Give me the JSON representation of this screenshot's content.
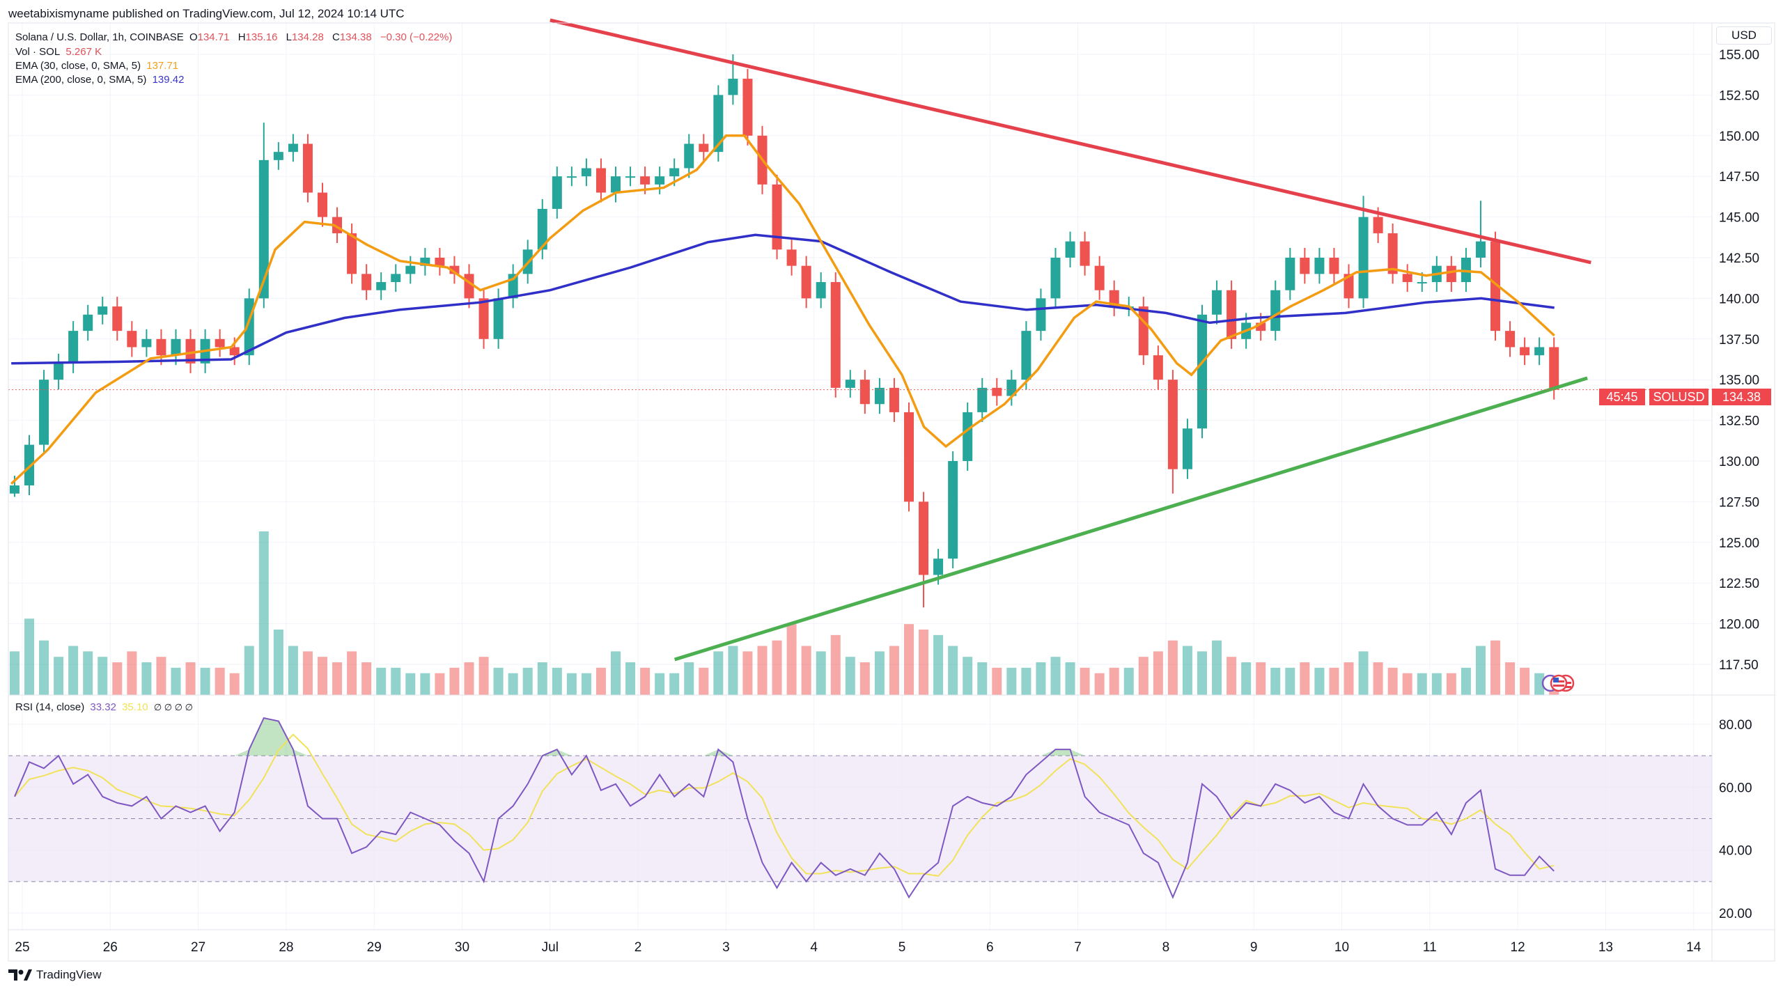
{
  "header": {
    "published": "weetabixismyname published on TradingView.com, Jul 12, 2024 10:14 UTC"
  },
  "legend": {
    "symbol": "Solana / U.S. Dollar, 1h, COINBASE",
    "o_label": "O",
    "o": "134.71",
    "h_label": "H",
    "h": "135.16",
    "l_label": "L",
    "l": "134.28",
    "c_label": "C",
    "c": "134.38",
    "change": "−0.30 (−0.22%)",
    "vol_label": "Vol · SOL",
    "vol": "5.267 K",
    "ema30_label": "EMA (30, close, 0, SMA, 5)",
    "ema30": "137.71",
    "ema200_label": "EMA (200, close, 0, SMA, 5)",
    "ema200": "139.42",
    "rsi_label": "RSI (14, close)",
    "rsi": "33.32",
    "rsi_ma": "35.10",
    "rsi_flags": "∅ ∅ ∅ ∅"
  },
  "price_axis": {
    "currency": "USD",
    "symbol_tag": "SOLUSD",
    "last_price": "134.38",
    "countdown": "45:45"
  },
  "footer": {
    "brand": "TradingView"
  },
  "colors": {
    "up": "#26a69a",
    "down": "#ef5350",
    "ema30": "#f39c12",
    "ema200": "#3030c8",
    "resistance": "#e5414c",
    "support": "#4caf50",
    "rsi": "#7e57c2",
    "rsi_ma": "#f1e25a",
    "rsi_band": "#ede7f6"
  },
  "icons": [
    "tradingview-logo-icon",
    "economic-event-icon"
  ],
  "chart_data": [
    {
      "type": "candlestick",
      "title": "Solana / U.S. Dollar, 1h, COINBASE",
      "ylim": [
        115.5,
        156.5
      ],
      "yticks": [
        "155.00",
        "152.50",
        "150.00",
        "147.50",
        "145.00",
        "142.50",
        "140.00",
        "137.50",
        "135.00",
        "132.50",
        "130.00",
        "127.50",
        "125.00",
        "122.50",
        "120.00",
        "117.50"
      ],
      "xticks": [
        "25",
        "26",
        "27",
        "28",
        "29",
        "30",
        "Jul",
        "2",
        "3",
        "4",
        "5",
        "6",
        "7",
        "8",
        "9",
        "10",
        "11",
        "12",
        "13",
        "14"
      ],
      "xrange": [
        "2024-06-25 00:00",
        "2024-07-14 00:00"
      ],
      "sample_start": "2024-06-24 20:00",
      "sample_interval_hours": 4,
      "closes": [
        128.5,
        131,
        135,
        136,
        138,
        139,
        139.5,
        138,
        137,
        137.5,
        136.5,
        137.5,
        136,
        137.5,
        137,
        136.5,
        140,
        148.5,
        149,
        149.5,
        146.5,
        145,
        144,
        141.5,
        140.5,
        141,
        141.5,
        142,
        142.5,
        142,
        141.5,
        140,
        137.5,
        140,
        141.5,
        143,
        145.5,
        147.5,
        147.5,
        148,
        146.5,
        147.5,
        147.5,
        147,
        147.5,
        148,
        149.5,
        149,
        152.5,
        153.5,
        150,
        147,
        143,
        142,
        140,
        141,
        134.5,
        135,
        133.5,
        134.5,
        133,
        127.5,
        123,
        124,
        130,
        133,
        134.5,
        134,
        135,
        138,
        140,
        142.5,
        143.5,
        142,
        140.5,
        139.5,
        139.5,
        136.5,
        135,
        129.5,
        132,
        139,
        140.5,
        137.5,
        138.5,
        138,
        140.5,
        142.5,
        141.5,
        142.5,
        141.5,
        140,
        145,
        144,
        141.5,
        141,
        141,
        142,
        141,
        142.5,
        143.5,
        138,
        137,
        136.5,
        137,
        134.38
      ],
      "notable_highs": {
        "49": 155.0,
        "17": 150.8,
        "92": 146.3,
        "100": 146.0
      },
      "notable_lows": {
        "62": 121.0,
        "79": 128.0,
        "0": 127.8
      },
      "volume": [
        8,
        14,
        10,
        7,
        9,
        8,
        7,
        6,
        8,
        6,
        7,
        5,
        6,
        5,
        5,
        4,
        9,
        30,
        12,
        9,
        8,
        7,
        6,
        8,
        6,
        5,
        5,
        4,
        4,
        4,
        5,
        6,
        7,
        5,
        4,
        5,
        6,
        5,
        4,
        4,
        5,
        8,
        6,
        5,
        4,
        4,
        6,
        5,
        8,
        9,
        8,
        9,
        10,
        13,
        9,
        8,
        11,
        7,
        6,
        8,
        9,
        13,
        12,
        11,
        9,
        7,
        6,
        5,
        5,
        5,
        6,
        7,
        6,
        5,
        4,
        5,
        5,
        7,
        8,
        10,
        9,
        8,
        10,
        7,
        6,
        6,
        5,
        5,
        6,
        5,
        5,
        6,
        8,
        6,
        5,
        4,
        4,
        4,
        4,
        5,
        9,
        10,
        6,
        5,
        4,
        2
      ],
      "ema30": [
        [
          "2024-06-24 21:00",
          128.6
        ],
        [
          "2024-06-25 07:00",
          130.7
        ],
        [
          "2024-06-25 20:00",
          134.2
        ],
        [
          "2024-06-26 11:00",
          136.3
        ],
        [
          "2024-06-27 09:00",
          137.0
        ],
        [
          "2024-06-27 13:00",
          138.1
        ],
        [
          "2024-06-27 21:00",
          143.0
        ],
        [
          "2024-06-28 05:00",
          144.7
        ],
        [
          "2024-06-28 13:00",
          144.5
        ],
        [
          "2024-06-28 22:00",
          143.3
        ],
        [
          "2024-06-29 07:00",
          142.3
        ],
        [
          "2024-06-29 20:00",
          141.9
        ],
        [
          "2024-06-30 05:00",
          140.5
        ],
        [
          "2024-06-30 14:00",
          141.2
        ],
        [
          "2024-07-01 00:00",
          143.7
        ],
        [
          "2024-07-01 09:00",
          145.4
        ],
        [
          "2024-07-01 18:00",
          146.5
        ],
        [
          "2024-07-02 07:00",
          146.8
        ],
        [
          "2024-07-02 16:00",
          147.9
        ],
        [
          "2024-07-03 00:00",
          150.0
        ],
        [
          "2024-07-03 05:00",
          150.0
        ],
        [
          "2024-07-03 11:00",
          148.2
        ],
        [
          "2024-07-03 20:00",
          145.8
        ],
        [
          "2024-07-04 05:00",
          142.3
        ],
        [
          "2024-07-04 15:00",
          138.4
        ],
        [
          "2024-07-05 00:00",
          135.3
        ],
        [
          "2024-07-05 06:00",
          132.1
        ],
        [
          "2024-07-05 12:00",
          130.9
        ],
        [
          "2024-07-05 19:00",
          132.1
        ],
        [
          "2024-07-06 04:00",
          133.5
        ],
        [
          "2024-07-06 13:00",
          135.6
        ],
        [
          "2024-07-06 23:00",
          138.8
        ],
        [
          "2024-07-07 05:00",
          139.8
        ],
        [
          "2024-07-07 14:00",
          139.5
        ],
        [
          "2024-07-07 20:00",
          138.1
        ],
        [
          "2024-07-08 03:00",
          136.0
        ],
        [
          "2024-07-08 07:00",
          135.3
        ],
        [
          "2024-07-08 15:00",
          137.4
        ],
        [
          "2024-07-09 00:00",
          138.2
        ],
        [
          "2024-07-09 10:00",
          139.5
        ],
        [
          "2024-07-09 19:00",
          140.5
        ],
        [
          "2024-07-10 04:00",
          141.6
        ],
        [
          "2024-07-10 14:00",
          141.8
        ],
        [
          "2024-07-10 23:00",
          141.4
        ],
        [
          "2024-07-11 08:00",
          141.7
        ],
        [
          "2024-07-11 14:00",
          141.6
        ],
        [
          "2024-07-12 00:00",
          139.8
        ],
        [
          "2024-07-12 10:00",
          137.71
        ]
      ],
      "ema200": [
        [
          "2024-06-24 21:00",
          136.0
        ],
        [
          "2024-06-26 02:00",
          136.1
        ],
        [
          "2024-06-27 09:00",
          136.25
        ],
        [
          "2024-06-28 00:00",
          137.9
        ],
        [
          "2024-06-28 16:00",
          138.8
        ],
        [
          "2024-06-29 07:00",
          139.3
        ],
        [
          "2024-06-30 05:00",
          139.75
        ],
        [
          "2024-07-01 00:00",
          140.5
        ],
        [
          "2024-07-01 22:00",
          141.9
        ],
        [
          "2024-07-02 19:00",
          143.45
        ],
        [
          "2024-07-03 08:00",
          143.9
        ],
        [
          "2024-07-04 02:00",
          143.5
        ],
        [
          "2024-07-04 21:00",
          141.6
        ],
        [
          "2024-07-05 16:00",
          139.8
        ],
        [
          "2024-07-06 10:00",
          139.3
        ],
        [
          "2024-07-07 05:00",
          139.6
        ],
        [
          "2024-07-08 00:00",
          139.1
        ],
        [
          "2024-07-08 12:00",
          138.5
        ],
        [
          "2024-07-09 00:00",
          138.8
        ],
        [
          "2024-07-10 01:00",
          139.1
        ],
        [
          "2024-07-10 23:00",
          139.75
        ],
        [
          "2024-07-11 14:00",
          140.0
        ],
        [
          "2024-07-12 10:00",
          139.42
        ]
      ],
      "trendlines": {
        "resistance": [
          [
            "2024-07-01 00:00",
            157.1
          ],
          [
            "2024-07-12 20:00",
            142.2
          ]
        ],
        "support": [
          [
            "2024-07-02 10:00",
            117.8
          ],
          [
            "2024-07-12 19:00",
            135.1
          ]
        ]
      },
      "last_price": 134.38
    },
    {
      "type": "line",
      "title": "RSI (14, close)",
      "ylim": [
        15,
        85
      ],
      "yticks": [
        "80.00",
        "60.00",
        "40.00",
        "20.00"
      ],
      "bands": {
        "upper": 70,
        "middle": 50,
        "lower": 30
      },
      "rsi": [
        57,
        68,
        66,
        70,
        61,
        64,
        57,
        55,
        54,
        57,
        50,
        54,
        52,
        54,
        46,
        52,
        72,
        82,
        81,
        72,
        54,
        50,
        50,
        39,
        41,
        46,
        45,
        52,
        50,
        48,
        43,
        39,
        30,
        50,
        54,
        61,
        70,
        72,
        64,
        70,
        59,
        61,
        54,
        57,
        64,
        57,
        61,
        57,
        72,
        68,
        50,
        36,
        28,
        36,
        30,
        36,
        32,
        34,
        32,
        39,
        34,
        25,
        32,
        36,
        54,
        57,
        55,
        54,
        57,
        64,
        68,
        72,
        72,
        57,
        52,
        50,
        48,
        39,
        36,
        25,
        36,
        61,
        57,
        50,
        55,
        54,
        61,
        59,
        55,
        57,
        52,
        50,
        61,
        54,
        50,
        48,
        48,
        52,
        45,
        55,
        59,
        34,
        32,
        32,
        38,
        33.32
      ],
      "rsi_ma_last": 35.1
    }
  ]
}
